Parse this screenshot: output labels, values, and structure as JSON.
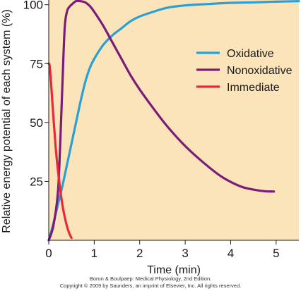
{
  "chart_data": {
    "type": "line",
    "title": "",
    "xlabel": "Time (min)",
    "ylabel": "Relative energy potential of each system (%)",
    "xlim": [
      0,
      5.5
    ],
    "ylim": [
      0,
      102
    ],
    "xticks": [
      0,
      1,
      2,
      3,
      4,
      5
    ],
    "xtick_labels": [
      "0",
      "1",
      "2",
      "3",
      "4",
      "5"
    ],
    "yticks": [
      25,
      50,
      75,
      100
    ],
    "ytick_labels": [
      "25",
      "50",
      "75",
      "100"
    ],
    "grid": false,
    "legend_position": "right",
    "background_color": "#fbe4b9",
    "series": [
      {
        "name": "Oxidative",
        "color": "#2aa0d4",
        "x": [
          0,
          0.1,
          0.2,
          0.3,
          0.4,
          0.5,
          0.6,
          0.7,
          0.8,
          0.9,
          1.0,
          1.2,
          1.4,
          1.6,
          1.8,
          2.0,
          2.3,
          2.6,
          3.0,
          3.5,
          4.0,
          4.5,
          5.0,
          5.5
        ],
        "y": [
          0,
          7,
          15,
          23,
          32,
          41,
          50,
          59,
          67,
          73,
          77,
          83,
          87,
          90,
          93,
          95,
          97,
          98.7,
          99.7,
          100.3,
          100.8,
          101,
          101.3,
          101.5
        ]
      },
      {
        "name": "Nonoxidative",
        "color": "#7b1d78",
        "x": [
          0,
          0.1,
          0.2,
          0.25,
          0.3,
          0.35,
          0.4,
          0.45,
          0.5,
          0.6,
          0.7,
          0.8,
          0.9,
          1.0,
          1.2,
          1.4,
          1.6,
          1.8,
          2.0,
          2.3,
          2.6,
          3.0,
          3.4,
          3.8,
          4.2,
          4.5,
          4.75,
          4.95
        ],
        "y": [
          0,
          6,
          20,
          40,
          66,
          90,
          97,
          99,
          100,
          101.5,
          101.5,
          101,
          99.5,
          97,
          91,
          84,
          77,
          70,
          64,
          56,
          48.5,
          40,
          33,
          27,
          23,
          21.5,
          20.8,
          20.7
        ]
      },
      {
        "name": "Immediate",
        "color": "#e8283c",
        "x": [
          0,
          0.02,
          0.05,
          0.1,
          0.15,
          0.2,
          0.25,
          0.3,
          0.35,
          0.4,
          0.45,
          0.5
        ],
        "y": [
          75,
          74,
          67,
          53,
          40,
          30,
          22,
          15,
          10,
          6,
          3,
          1
        ]
      }
    ]
  },
  "credits": {
    "line1": "Boron & Boulpaep: Medical Physiology, 2nd Edition.",
    "line2": "Copyright © 2009 by Saunders, an imprint of Elsevier, Inc. All rights reserved."
  }
}
